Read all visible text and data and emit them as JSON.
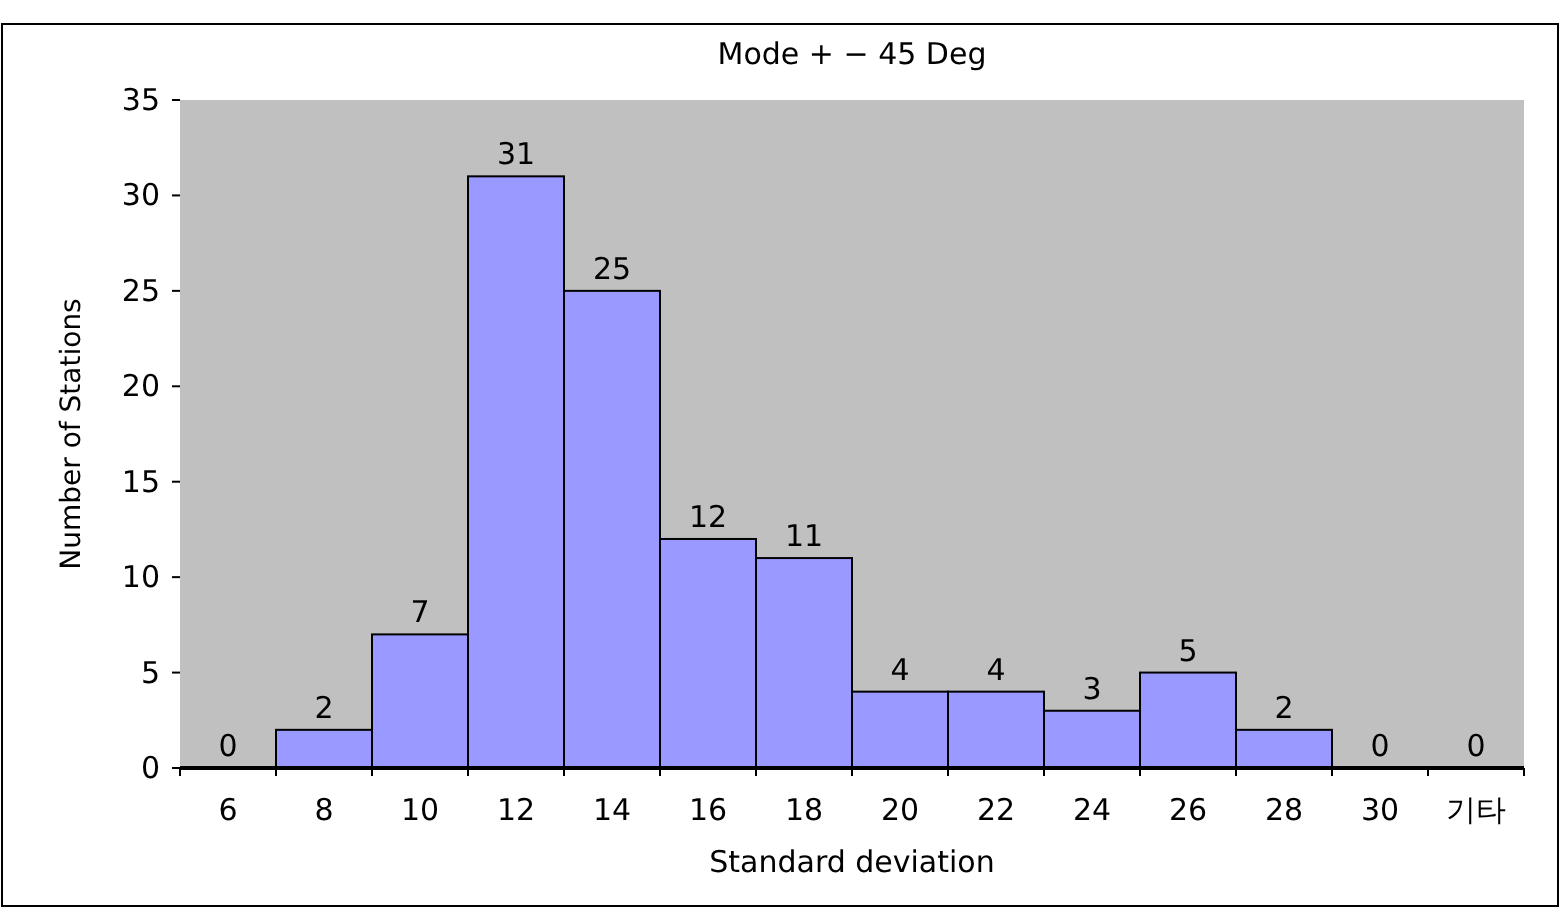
{
  "chart_data": {
    "type": "bar",
    "title": "Mode + − 45 Deg",
    "xlabel": "Standard deviation",
    "ylabel": "Number of Stations",
    "categories": [
      "6",
      "8",
      "10",
      "12",
      "14",
      "16",
      "18",
      "20",
      "22",
      "24",
      "26",
      "28",
      "30",
      "기타"
    ],
    "values": [
      0,
      2,
      7,
      31,
      25,
      12,
      11,
      4,
      4,
      3,
      5,
      2,
      0,
      0
    ],
    "color": "#9999ff",
    "ylim": [
      0,
      35
    ],
    "yticks": [
      0,
      5,
      10,
      15,
      20,
      25,
      30,
      35
    ],
    "data_labels": true
  }
}
